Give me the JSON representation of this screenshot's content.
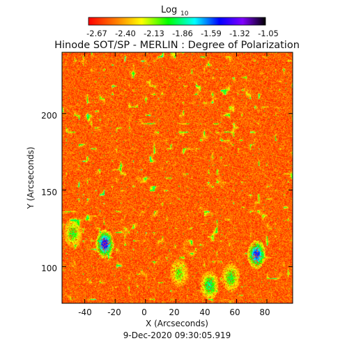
{
  "chart_data": {
    "type": "heatmap",
    "title": "Hinode SOT/SP - MERLIN : Degree of Polarization",
    "xlabel": "X (Arcseconds)",
    "ylabel": "Y (Arcseconds)",
    "timestamp": "9-Dec-2020 09:30:05.919",
    "xlim": [
      -55,
      97
    ],
    "ylim": [
      76,
      240
    ],
    "x_ticks": [
      -40,
      -20,
      0,
      20,
      40,
      60,
      80
    ],
    "y_ticks": [
      100,
      150,
      200
    ],
    "colorbar": {
      "title": "Log",
      "title_subscript": "10",
      "range": [
        -2.67,
        -1.05
      ],
      "tick_labels": [
        "-2.67",
        "-2.40",
        "-2.13",
        "-1.86",
        "-1.59",
        "-1.32",
        "-1.05"
      ],
      "colors": [
        "#ff0000",
        "#ff8000",
        "#ffff00",
        "#00ff00",
        "#00ffff",
        "#0000ff",
        "#8000ff",
        "#000000"
      ]
    },
    "field_note": "background values near -2.6 to -2.3 (red/orange), scattered yellow-green network",
    "high_polarization_patches": [
      {
        "x": -27,
        "y": 115,
        "value": -1.35
      },
      {
        "x": 73,
        "y": 108,
        "value": -1.45
      },
      {
        "x": 42,
        "y": 88,
        "value": -1.8
      },
      {
        "x": 56,
        "y": 93,
        "value": -1.9
      },
      {
        "x": -48,
        "y": 122,
        "value": -1.95
      },
      {
        "x": 22,
        "y": 96,
        "value": -2.0
      }
    ]
  }
}
